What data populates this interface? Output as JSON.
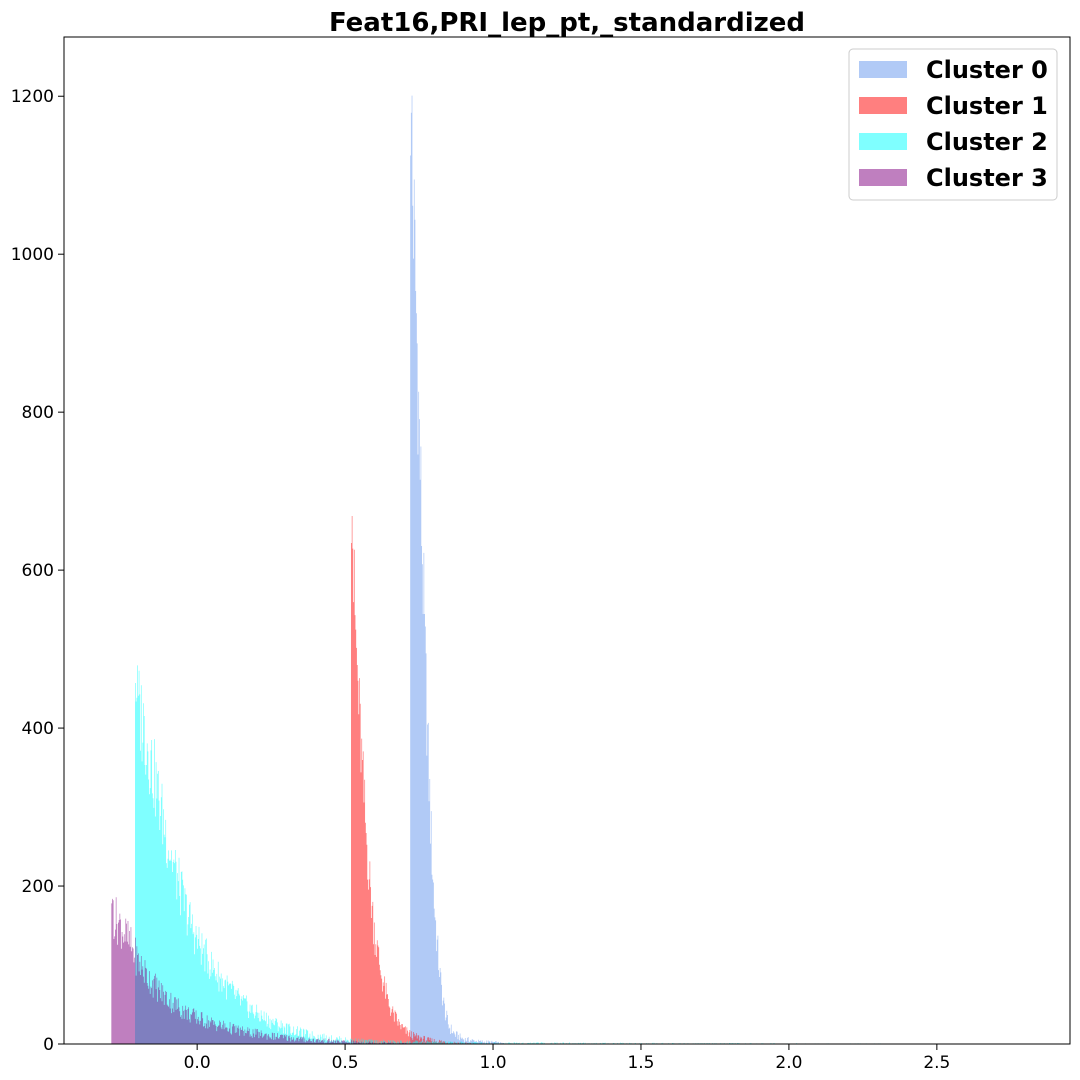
{
  "chart_data": {
    "type": "histogram",
    "title": "Feat16,PRI_lep_pt,_standardized",
    "xlabel": "",
    "ylabel": "",
    "xlim": [
      -0.45,
      2.95
    ],
    "ylim": [
      0,
      1275
    ],
    "xticks": [
      0.0,
      0.5,
      1.0,
      1.5,
      2.0,
      2.5
    ],
    "xtick_labels": [
      "0.0",
      "0.5",
      "1.0",
      "1.5",
      "2.0",
      "2.5"
    ],
    "yticks": [
      0,
      200,
      400,
      600,
      800,
      1000,
      1200
    ],
    "ytick_labels": [
      "0",
      "200",
      "400",
      "600",
      "800",
      "1000",
      "1200"
    ],
    "legend": {
      "position": "top-right"
    },
    "series": [
      {
        "name": "Cluster 0",
        "color": "#6495ED",
        "alpha": 0.5,
        "x_start": 0.72,
        "x_end": 1.05,
        "peak": 1210,
        "points": [
          [
            0.72,
            1140
          ],
          [
            0.73,
            1050
          ],
          [
            0.74,
            920
          ],
          [
            0.75,
            770
          ],
          [
            0.76,
            620
          ],
          [
            0.77,
            480
          ],
          [
            0.78,
            360
          ],
          [
            0.79,
            260
          ],
          [
            0.8,
            180
          ],
          [
            0.81,
            125
          ],
          [
            0.82,
            85
          ],
          [
            0.83,
            55
          ],
          [
            0.84,
            35
          ],
          [
            0.85,
            22
          ],
          [
            0.87,
            12
          ],
          [
            0.9,
            6
          ],
          [
            0.95,
            3
          ],
          [
            1.0,
            2
          ],
          [
            1.05,
            0
          ]
        ]
      },
      {
        "name": "Cluster 1",
        "color": "#FF0000",
        "alpha": 0.5,
        "x_start": 0.52,
        "x_end": 0.95,
        "peak": 670,
        "points": [
          [
            0.52,
            660
          ],
          [
            0.53,
            560
          ],
          [
            0.54,
            470
          ],
          [
            0.55,
            395
          ],
          [
            0.56,
            325
          ],
          [
            0.57,
            265
          ],
          [
            0.58,
            215
          ],
          [
            0.59,
            172
          ],
          [
            0.6,
            138
          ],
          [
            0.62,
            90
          ],
          [
            0.64,
            58
          ],
          [
            0.66,
            38
          ],
          [
            0.68,
            26
          ],
          [
            0.7,
            17
          ],
          [
            0.73,
            10
          ],
          [
            0.78,
            5
          ],
          [
            0.85,
            2
          ],
          [
            0.95,
            0
          ]
        ]
      },
      {
        "name": "Cluster 2",
        "color": "#00FFFF",
        "alpha": 0.5,
        "x_start": -0.21,
        "x_end": 2.8,
        "peak": 460,
        "points": [
          [
            -0.21,
            440
          ],
          [
            -0.18,
            400
          ],
          [
            -0.15,
            345
          ],
          [
            -0.12,
            290
          ],
          [
            -0.09,
            240
          ],
          [
            -0.06,
            197
          ],
          [
            -0.03,
            160
          ],
          [
            0.0,
            130
          ],
          [
            0.05,
            97
          ],
          [
            0.1,
            72
          ],
          [
            0.15,
            52
          ],
          [
            0.2,
            38
          ],
          [
            0.25,
            28
          ],
          [
            0.3,
            20
          ],
          [
            0.35,
            14
          ],
          [
            0.4,
            10
          ],
          [
            0.45,
            7
          ],
          [
            0.5,
            5
          ],
          [
            0.6,
            3
          ],
          [
            0.8,
            2
          ],
          [
            1.0,
            1
          ],
          [
            1.5,
            0.5
          ],
          [
            2.0,
            0.3
          ],
          [
            2.8,
            0
          ]
        ]
      },
      {
        "name": "Cluster 3",
        "color": "#800080",
        "alpha": 0.5,
        "x_start": -0.29,
        "x_end": 0.75,
        "peak": 182,
        "points": [
          [
            -0.29,
            165
          ],
          [
            -0.26,
            150
          ],
          [
            -0.23,
            128
          ],
          [
            -0.2,
            104
          ],
          [
            -0.17,
            86
          ],
          [
            -0.14,
            72
          ],
          [
            -0.11,
            60
          ],
          [
            -0.08,
            51
          ],
          [
            -0.05,
            43
          ],
          [
            -0.02,
            36
          ],
          [
            0.0,
            33
          ],
          [
            0.05,
            26
          ],
          [
            0.1,
            21
          ],
          [
            0.15,
            16
          ],
          [
            0.2,
            13
          ],
          [
            0.25,
            10
          ],
          [
            0.3,
            8
          ],
          [
            0.35,
            6
          ],
          [
            0.4,
            4.5
          ],
          [
            0.45,
            3.5
          ],
          [
            0.5,
            2.5
          ],
          [
            0.6,
            1.5
          ],
          [
            0.75,
            0
          ]
        ]
      }
    ]
  }
}
